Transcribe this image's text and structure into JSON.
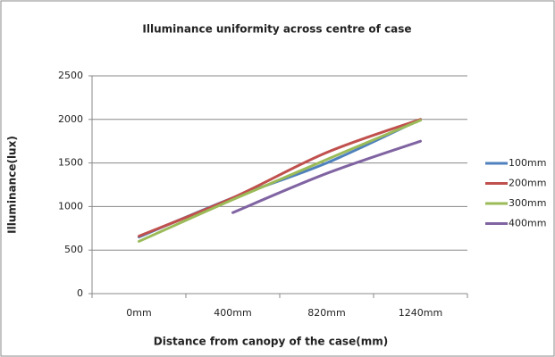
{
  "chart_data": {
    "type": "line",
    "title": "Illuminance uniformity across centre of case",
    "x_label": "Distance from canopy of the case(mm)",
    "y_label": "Illuminance(lux)",
    "categories": [
      "0mm",
      "400mm",
      "820mm",
      "1240mm"
    ],
    "series": [
      {
        "name": "100mm",
        "color": "#4f81bd",
        "values": [
          650,
          1100,
          1500,
          2000
        ]
      },
      {
        "name": "200mm",
        "color": "#c0504d",
        "values": [
          660,
          1100,
          1620,
          2000
        ]
      },
      {
        "name": "300mm",
        "color": "#9bbb59",
        "values": [
          600,
          1080,
          1540,
          1990
        ]
      },
      {
        "name": "400mm",
        "color": "#8064a2",
        "values": [
          null,
          930,
          1380,
          1750
        ]
      }
    ],
    "ylim": [
      0,
      2500
    ],
    "yticks": [
      0,
      500,
      1000,
      1500,
      2000,
      2500
    ],
    "grid": true,
    "legend": "right"
  }
}
